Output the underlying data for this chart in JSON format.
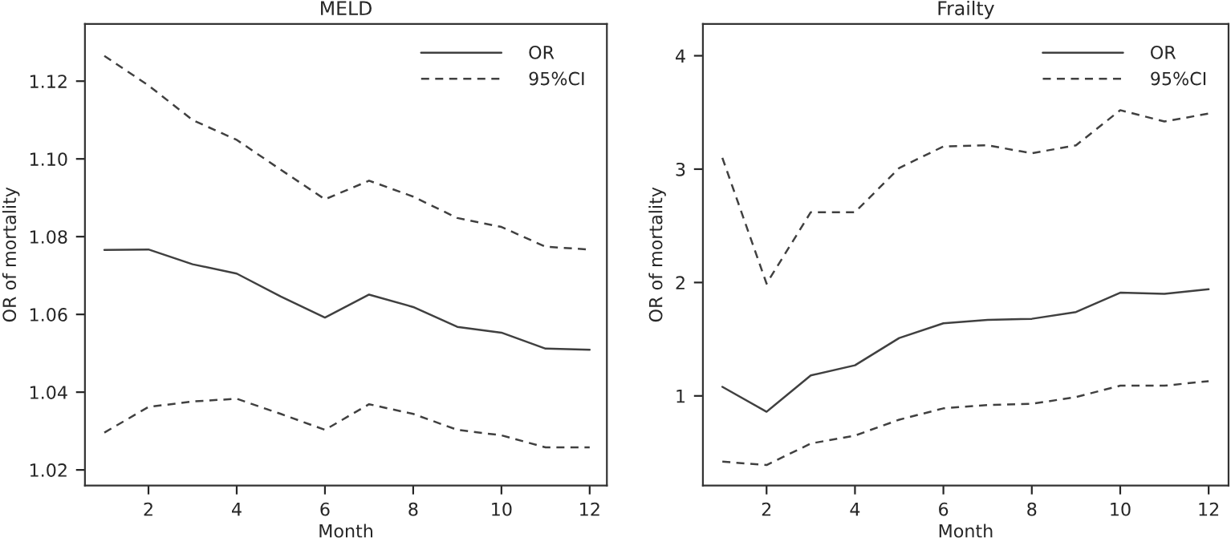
{
  "chart_data": [
    {
      "type": "line",
      "title": "MELD",
      "xlabel": "Month",
      "ylabel": "OR of mortality",
      "x": [
        1,
        2,
        3,
        4,
        5,
        6,
        7,
        8,
        9,
        10,
        11,
        12
      ],
      "xlim": [
        0.56,
        12.39
      ],
      "xticks": [
        2,
        4,
        6,
        8,
        10,
        12
      ],
      "ylim": [
        1.016,
        1.1347
      ],
      "yticks": [
        1.02,
        1.04,
        1.06,
        1.08,
        {
          "value": 1.1,
          "label": "1.10"
        },
        1.12
      ],
      "legend": "top right",
      "grid": false,
      "series": [
        {
          "name": "OR",
          "color": "#404040",
          "line_style": "solid",
          "values": [
            1.0766,
            1.0767,
            1.0729,
            1.0705,
            1.0646,
            1.0592,
            1.0651,
            1.0619,
            1.0568,
            1.0553,
            1.0512,
            1.0509
          ]
        },
        {
          "name": "95%CI",
          "color": "#404040",
          "line_style": "dashed",
          "values": [
            1.1265,
            1.1189,
            1.11,
            1.1049,
            1.0972,
            1.0896,
            1.0944,
            1.0903,
            1.0848,
            1.0825,
            1.0774,
            1.0767
          ]
        },
        {
          "color": "#404040",
          "line_style": "dashed",
          "values": [
            1.0296,
            1.0362,
            1.0376,
            1.0383,
            1.0344,
            1.0303,
            1.0369,
            1.0344,
            1.0303,
            1.0289,
            1.0258,
            1.0258
          ]
        }
      ]
    },
    {
      "type": "line",
      "title": "Frailty",
      "xlabel": "Month",
      "ylabel": "OR of mortality",
      "x": [
        1,
        2,
        3,
        4,
        5,
        6,
        7,
        8,
        9,
        10,
        11,
        12
      ],
      "xlim": [
        0.56,
        12.45
      ],
      "xticks": [
        2,
        4,
        6,
        8,
        10,
        12
      ],
      "ylim": [
        0.21,
        4.28
      ],
      "yticks": [
        1,
        2,
        3,
        4
      ],
      "legend": "top right",
      "grid": false,
      "series": [
        {
          "name": "OR",
          "color": "#404040",
          "line_style": "solid",
          "values": [
            1.08,
            0.86,
            1.18,
            1.27,
            1.51,
            1.64,
            1.67,
            1.68,
            1.74,
            1.91,
            1.9,
            1.94
          ]
        },
        {
          "name": "95%CI",
          "color": "#404040",
          "line_style": "dashed",
          "values": [
            3.1,
            1.99,
            2.62,
            2.62,
            3.01,
            3.2,
            3.21,
            3.14,
            3.21,
            3.52,
            3.42,
            3.49
          ]
        },
        {
          "color": "#404040",
          "line_style": "dashed",
          "values": [
            0.42,
            0.39,
            0.58,
            0.65,
            0.79,
            0.89,
            0.92,
            0.93,
            0.99,
            1.09,
            1.09,
            1.13
          ]
        }
      ]
    }
  ]
}
